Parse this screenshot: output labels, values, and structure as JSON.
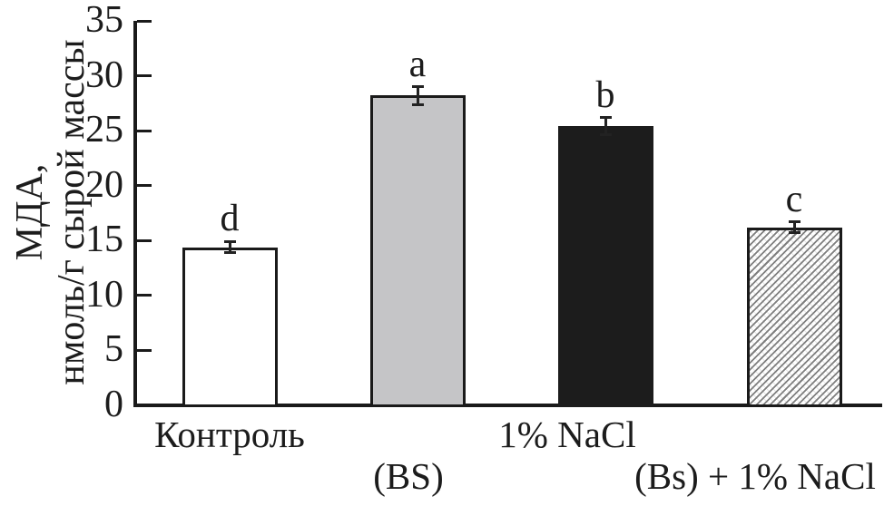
{
  "chart_data": {
    "type": "bar",
    "title": "",
    "ylabel_line1": "МДА,",
    "ylabel_line2": "нмоль/г сырой массы",
    "xlabel": "",
    "ylim": [
      0,
      35
    ],
    "yticks": [
      0,
      5,
      10,
      15,
      20,
      25,
      30,
      35
    ],
    "grid": false,
    "legend": "none",
    "categories": [
      "Контроль",
      "(BS)",
      "1% NaCl",
      "(Bs) + 1% NaCl"
    ],
    "bars": [
      {
        "label": "Контроль",
        "label_row": 1,
        "value": 14.4,
        "error": 0.5,
        "letter": "d",
        "style": "white"
      },
      {
        "label": "(BS)",
        "label_row": 2,
        "value": 28.2,
        "error": 0.8,
        "letter": "a",
        "style": "gray"
      },
      {
        "label": "1% NaCl",
        "label_row": 1,
        "value": 25.4,
        "error": 0.8,
        "letter": "b",
        "style": "black"
      },
      {
        "label": "(Bs) + 1% NaCl",
        "label_row": 2,
        "value": 16.2,
        "error": 0.5,
        "letter": "c",
        "style": "hatch"
      }
    ],
    "colors": {
      "axis": "#1a1a1a",
      "text": "#1c1c1c",
      "bar_white": "#ffffff",
      "bar_gray": "#c5c5c7",
      "bar_black": "#1c1c1c",
      "hatch_line": "#7f7f7f"
    }
  }
}
